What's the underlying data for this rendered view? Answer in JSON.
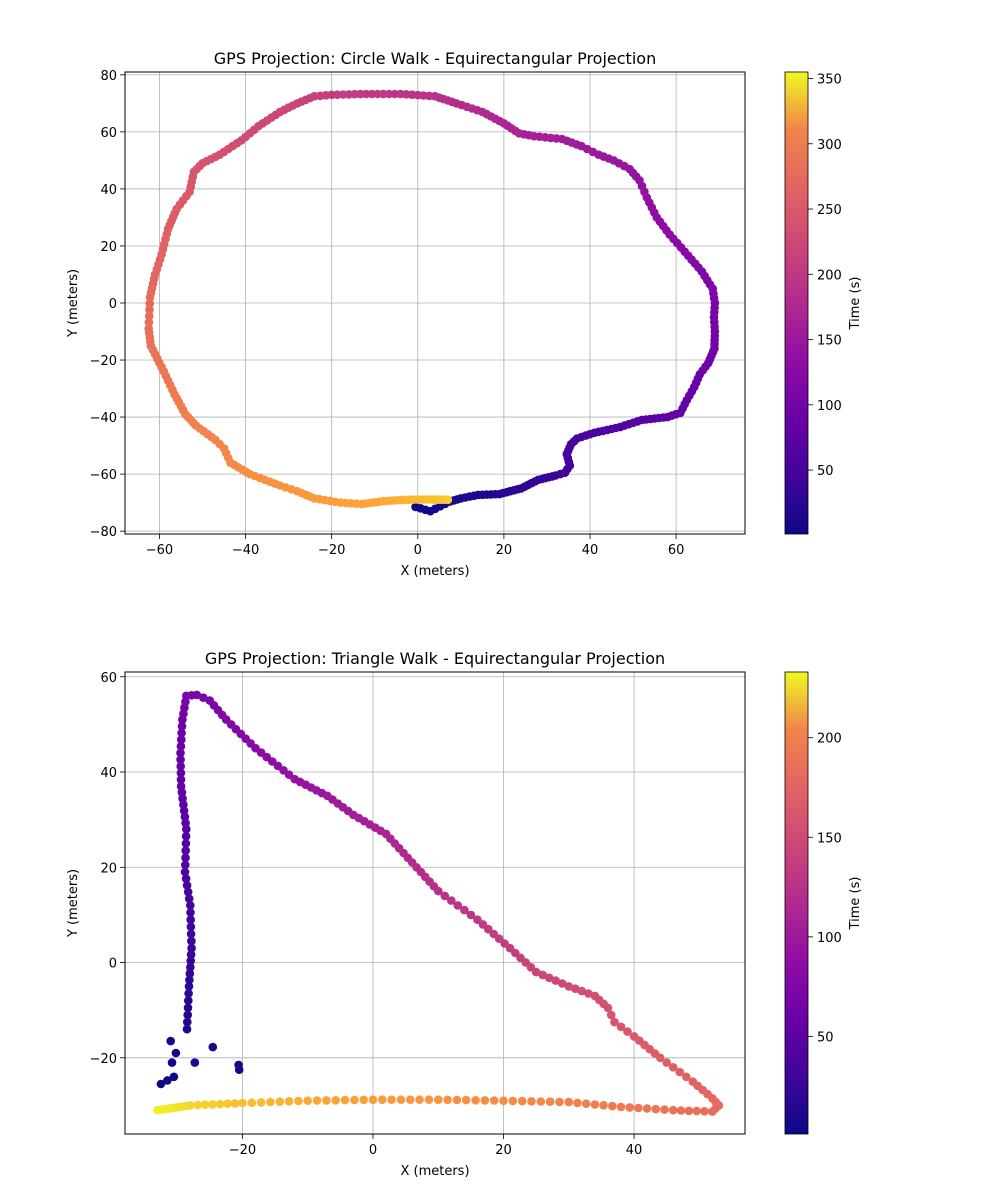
{
  "chart_data": [
    {
      "type": "scatter",
      "title": "GPS Projection: Circle Walk - Equirectangular Projection",
      "xlabel": "X (meters)",
      "ylabel": "Y (meters)",
      "xlim": [
        -68,
        76
      ],
      "ylim": [
        -81,
        81
      ],
      "xticks": [
        -60,
        -40,
        -20,
        0,
        20,
        40,
        60
      ],
      "yticks": [
        -80,
        -60,
        -40,
        -20,
        0,
        20,
        40,
        60,
        80
      ],
      "grid": true,
      "colorbar": {
        "label": "Time (s)",
        "min": 1,
        "max": 355,
        "ticks": [
          50,
          100,
          150,
          200,
          250,
          300,
          350
        ],
        "colormap": "plasma"
      },
      "waypoints": [
        [
          -0.5,
          -71.5,
          1
        ],
        [
          2.9,
          -73,
          4
        ],
        [
          7.5,
          -69.6,
          8
        ],
        [
          10,
          -68.5,
          11
        ],
        [
          14,
          -67.3,
          15
        ],
        [
          19,
          -67,
          20
        ],
        [
          24,
          -65,
          26
        ],
        [
          28,
          -62,
          31
        ],
        [
          32,
          -60.5,
          36
        ],
        [
          34.2,
          -59.5,
          38
        ],
        [
          35.3,
          -57,
          40
        ],
        [
          34.6,
          -53,
          43
        ],
        [
          35.6,
          -49.5,
          46
        ],
        [
          37,
          -47.5,
          48
        ],
        [
          41,
          -45.5,
          52
        ],
        [
          47,
          -43.5,
          58
        ],
        [
          52,
          -41,
          63
        ],
        [
          58,
          -40,
          69
        ],
        [
          61,
          -38.5,
          72
        ],
        [
          62.5,
          -34,
          75
        ],
        [
          64.2,
          -29.5,
          78
        ],
        [
          65.5,
          -25,
          81
        ],
        [
          67.5,
          -21,
          84
        ],
        [
          68.9,
          -16,
          88
        ],
        [
          69,
          -10,
          92
        ],
        [
          68.8,
          -5,
          95
        ],
        [
          69,
          0,
          98
        ],
        [
          68.5,
          5,
          101
        ],
        [
          66,
          11,
          105
        ],
        [
          62,
          18,
          110
        ],
        [
          58.5,
          24,
          114
        ],
        [
          55.5,
          30,
          118
        ],
        [
          53.2,
          37,
          122
        ],
        [
          51.5,
          43,
          125
        ],
        [
          49.2,
          47,
          128
        ],
        [
          45.5,
          50,
          131
        ],
        [
          42,
          52,
          134
        ],
        [
          38,
          55,
          137
        ],
        [
          33.5,
          57.5,
          141
        ],
        [
          27,
          58.5,
          146
        ],
        [
          23.5,
          59.5,
          149
        ],
        [
          20,
          63,
          153
        ],
        [
          15,
          67,
          158
        ],
        [
          9,
          70,
          163
        ],
        [
          4,
          72.5,
          168
        ],
        [
          -4,
          73.3,
          174
        ],
        [
          -12,
          73.3,
          180
        ],
        [
          -20,
          73,
          186
        ],
        [
          -24,
          72.5,
          189
        ],
        [
          -28,
          70,
          193
        ],
        [
          -32,
          67,
          197
        ],
        [
          -37,
          62,
          202
        ],
        [
          -41,
          57,
          206
        ],
        [
          -46,
          52,
          211
        ],
        [
          -50,
          49,
          215
        ],
        [
          -52,
          46,
          218
        ],
        [
          -53,
          39,
          222
        ],
        [
          -56,
          33,
          226
        ],
        [
          -58,
          26,
          231
        ],
        [
          -59.5,
          17,
          236
        ],
        [
          -61,
          10,
          240
        ],
        [
          -62.2,
          2,
          245
        ],
        [
          -62.5,
          -9,
          250
        ],
        [
          -62,
          -15,
          254
        ],
        [
          -59,
          -24,
          260
        ],
        [
          -56.5,
          -32,
          265
        ],
        [
          -54,
          -39,
          270
        ],
        [
          -51.5,
          -43,
          274
        ],
        [
          -47,
          -48,
          279
        ],
        [
          -45,
          -51,
          281
        ],
        [
          -43.5,
          -56,
          284
        ],
        [
          -39,
          -60,
          289
        ],
        [
          -32,
          -64,
          295
        ],
        [
          -28,
          -66,
          298
        ],
        [
          -24,
          -68.5,
          302
        ],
        [
          -18,
          -70,
          307
        ],
        [
          -13,
          -70.5,
          311
        ],
        [
          -8,
          -69.5,
          316
        ],
        [
          -3,
          -69,
          321
        ],
        [
          2,
          -68.9,
          326
        ],
        [
          7,
          -69,
          333
        ]
      ]
    },
    {
      "type": "scatter",
      "title": "GPS Projection: Triangle Walk - Equirectangular Projection",
      "xlabel": "X (meters)",
      "ylabel": "Y (meters)",
      "xlim": [
        -38,
        57
      ],
      "ylim": [
        -36,
        61
      ],
      "xticks": [
        -20,
        0,
        20,
        40
      ],
      "yticks": [
        -20,
        0,
        20,
        40,
        60
      ],
      "grid": true,
      "colorbar": {
        "label": "Time (s)",
        "min": 1,
        "max": 233,
        "ticks": [
          50,
          100,
          150,
          200
        ],
        "colormap": "plasma"
      },
      "waypoints": [
        [
          -32.5,
          -25.5,
          1
        ],
        [
          -30.5,
          -24,
          3
        ],
        [
          -30.8,
          -21,
          4
        ],
        [
          -31,
          -16.5,
          5
        ],
        [
          -30.2,
          -19,
          6
        ],
        [
          -27.3,
          -21,
          7
        ],
        [
          -20.5,
          -22.5,
          8
        ],
        [
          -20.6,
          -21.5,
          9
        ],
        [
          -28.5,
          -14,
          11
        ],
        [
          -28.2,
          -5,
          17
        ],
        [
          -27.8,
          3,
          23
        ],
        [
          -28,
          12,
          29
        ],
        [
          -28.8,
          19,
          34
        ],
        [
          -28.6,
          28,
          40
        ],
        [
          -29.4,
          37,
          47
        ],
        [
          -29.5,
          44,
          52
        ],
        [
          -29.2,
          51,
          57
        ],
        [
          -28.6,
          56,
          61
        ],
        [
          -27,
          56.2,
          63
        ],
        [
          -25,
          55,
          65
        ],
        [
          -22.5,
          51,
          69
        ],
        [
          -18,
          45,
          75
        ],
        [
          -12,
          38.5,
          82
        ],
        [
          -7,
          35,
          88
        ],
        [
          -3,
          31,
          93
        ],
        [
          2,
          27,
          99
        ],
        [
          6,
          21,
          105
        ],
        [
          10,
          15,
          111
        ],
        [
          16,
          9,
          117
        ],
        [
          21,
          3,
          123
        ],
        [
          25,
          -2,
          128
        ],
        [
          30,
          -5,
          133
        ],
        [
          34,
          -7,
          137
        ],
        [
          36,
          -9.5,
          140
        ],
        [
          37,
          -12.5,
          142
        ],
        [
          40,
          -15.5,
          145
        ],
        [
          44,
          -20,
          150
        ],
        [
          49,
          -25,
          155
        ],
        [
          52,
          -28.5,
          159
        ],
        [
          53,
          -30,
          161
        ],
        [
          52,
          -31.3,
          163
        ],
        [
          46,
          -31,
          168
        ],
        [
          38,
          -30.3,
          174
        ],
        [
          30,
          -29.3,
          180
        ],
        [
          20,
          -29,
          187
        ],
        [
          10,
          -28.8,
          194
        ],
        [
          0,
          -28.8,
          201
        ],
        [
          -10,
          -29,
          208
        ],
        [
          -20,
          -29.5,
          215
        ],
        [
          -28,
          -30,
          222
        ],
        [
          -33,
          -31,
          230
        ]
      ]
    }
  ]
}
